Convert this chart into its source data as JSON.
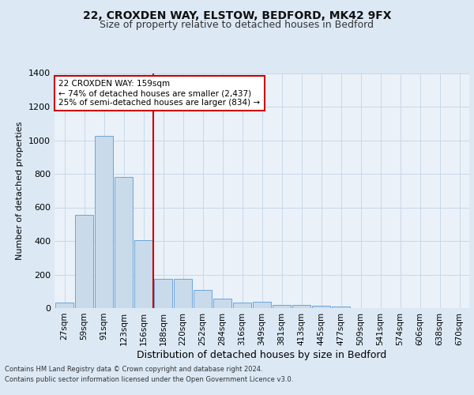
{
  "title1": "22, CROXDEN WAY, ELSTOW, BEDFORD, MK42 9FX",
  "title2": "Size of property relative to detached houses in Bedford",
  "xlabel": "Distribution of detached houses by size in Bedford",
  "ylabel": "Number of detached properties",
  "categories": [
    "27sqm",
    "59sqm",
    "91sqm",
    "123sqm",
    "156sqm",
    "188sqm",
    "220sqm",
    "252sqm",
    "284sqm",
    "316sqm",
    "349sqm",
    "381sqm",
    "413sqm",
    "445sqm",
    "477sqm",
    "509sqm",
    "541sqm",
    "574sqm",
    "606sqm",
    "638sqm",
    "670sqm"
  ],
  "values": [
    35,
    555,
    1025,
    780,
    405,
    175,
    175,
    110,
    55,
    35,
    40,
    20,
    20,
    15,
    10,
    0,
    0,
    0,
    0,
    0,
    0
  ],
  "bar_color": "#c9daea",
  "bar_edge_color": "#5b9bd5",
  "grid_color": "#c8d8e8",
  "background_color": "#dce9f5",
  "plot_bg_color": "#eaf1f8",
  "vline_color": "#cc0000",
  "annotation_text": "22 CROXDEN WAY: 159sqm\n← 74% of detached houses are smaller (2,437)\n25% of semi-detached houses are larger (834) →",
  "annotation_box_color": "#ffffff",
  "annotation_box_edge": "#cc0000",
  "footer1": "Contains HM Land Registry data © Crown copyright and database right 2024.",
  "footer2": "Contains public sector information licensed under the Open Government Licence v3.0.",
  "ylim": [
    0,
    1400
  ],
  "yticks": [
    0,
    200,
    400,
    600,
    800,
    1000,
    1200,
    1400
  ]
}
